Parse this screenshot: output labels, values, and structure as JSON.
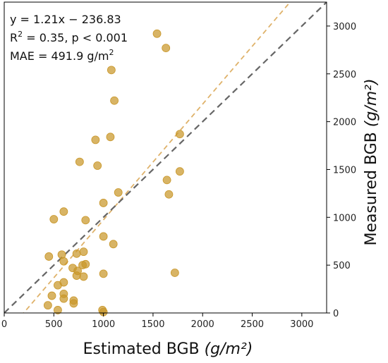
{
  "chart_data": {
    "type": "scatter",
    "xlabel": "Estimated BGB",
    "xlabel_unit": "(g/m²)",
    "ylabel": "Measured BGB",
    "ylabel_unit": "(g/m²)",
    "xlim": [
      0,
      3250
    ],
    "ylim": [
      0,
      3250
    ],
    "x_ticks": [
      0,
      500,
      1000,
      1500,
      2000,
      2500,
      3000
    ],
    "y_ticks": [
      0,
      500,
      1000,
      1500,
      2000,
      2500,
      3000
    ],
    "y_axis_side": "right",
    "grid": false,
    "annotations": {
      "equation": "y = 1.21x − 236.83",
      "r2_prefix": "R",
      "r2_sup": "2",
      "r2_suffix": " = 0.35, p < 0.001",
      "mae_prefix": "MAE = 491.9 g/m",
      "mae_sup": "2"
    },
    "lines": [
      {
        "role": "fit",
        "slope": 1.21,
        "intercept": -236.83,
        "color": "#dfb26a",
        "style": "dashed"
      },
      {
        "role": "one-to-one",
        "slope": 1,
        "intercept": 0,
        "color": "#666666",
        "style": "dashed"
      }
    ],
    "point_color": "#c9972a",
    "points": [
      [
        1540,
        2920
      ],
      [
        1630,
        2770
      ],
      [
        1080,
        2540
      ],
      [
        1110,
        2220
      ],
      [
        1770,
        1870
      ],
      [
        1070,
        1840
      ],
      [
        920,
        1810
      ],
      [
        760,
        1580
      ],
      [
        940,
        1540
      ],
      [
        1770,
        1480
      ],
      [
        1640,
        1390
      ],
      [
        1150,
        1260
      ],
      [
        1660,
        1240
      ],
      [
        1000,
        1150
      ],
      [
        600,
        1060
      ],
      [
        500,
        980
      ],
      [
        820,
        970
      ],
      [
        1000,
        800
      ],
      [
        1100,
        720
      ],
      [
        580,
        610
      ],
      [
        800,
        640
      ],
      [
        730,
        620
      ],
      [
        450,
        590
      ],
      [
        600,
        540
      ],
      [
        690,
        470
      ],
      [
        790,
        500
      ],
      [
        820,
        510
      ],
      [
        740,
        440
      ],
      [
        1720,
        420
      ],
      [
        1000,
        410
      ],
      [
        730,
        390
      ],
      [
        800,
        380
      ],
      [
        600,
        320
      ],
      [
        540,
        290
      ],
      [
        600,
        200
      ],
      [
        480,
        180
      ],
      [
        600,
        150
      ],
      [
        700,
        130
      ],
      [
        700,
        100
      ],
      [
        440,
        80
      ],
      [
        540,
        30
      ],
      [
        990,
        30
      ],
      [
        1000,
        10
      ]
    ]
  }
}
